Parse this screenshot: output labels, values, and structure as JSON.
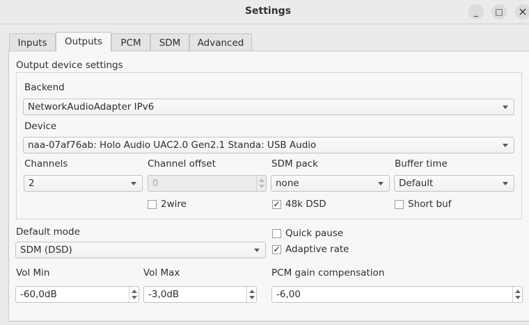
{
  "window": {
    "title": "Settings",
    "minimize": "_",
    "maximize": "□",
    "close": "×"
  },
  "tabs": [
    {
      "label": "Inputs"
    },
    {
      "label": "Outputs",
      "active": true
    },
    {
      "label": "PCM"
    },
    {
      "label": "SDM"
    },
    {
      "label": "Advanced"
    }
  ],
  "output": {
    "group_title": "Output device settings",
    "backend": {
      "label": "Backend",
      "value": "NetworkAudioAdapter IPv6"
    },
    "device": {
      "label": "Device",
      "value": "naa-07af76ab: Holo Audio UAC2.0 Gen2.1 Standa: USB Audio"
    },
    "channels": {
      "label": "Channels",
      "value": "2"
    },
    "channel_offset": {
      "label": "Channel offset",
      "value": "0",
      "disabled": true
    },
    "sdm_pack": {
      "label": "SDM pack",
      "value": "none"
    },
    "buffer_time": {
      "label": "Buffer time",
      "value": "Default"
    },
    "twowire": {
      "label": "2wire",
      "checked": false,
      "mark": "✓"
    },
    "dsd48k": {
      "label": "48k DSD",
      "checked": true,
      "mark": "✓"
    },
    "short_buf": {
      "label": "Short buf",
      "checked": false
    }
  },
  "default_mode": {
    "label": "Default mode",
    "value": "SDM (DSD)"
  },
  "quick_pause": {
    "label": "Quick pause",
    "checked": false
  },
  "adaptive_rate": {
    "label": "Adaptive rate",
    "checked": true,
    "mark": "✓"
  },
  "vol_min": {
    "label": "Vol Min",
    "value": "-60,0dB"
  },
  "vol_max": {
    "label": "Vol Max",
    "value": "-3,0dB"
  },
  "pcm_gain": {
    "label": "PCM gain compensation",
    "value": "-6,00"
  }
}
